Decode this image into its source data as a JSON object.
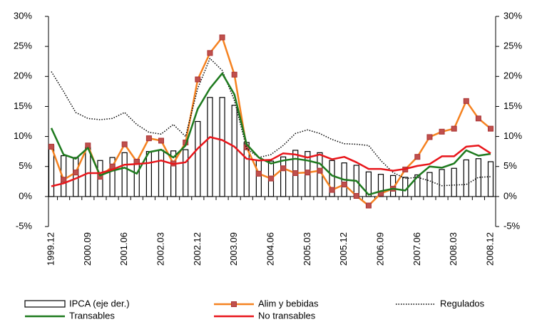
{
  "chart_data": {
    "type": "bar-line",
    "categories": [
      "1999.12",
      null,
      null,
      "2000.09",
      null,
      null,
      "2001.06",
      null,
      null,
      "2002.03",
      null,
      null,
      "2002.12",
      null,
      null,
      "2003.09",
      null,
      null,
      "2004.06",
      null,
      null,
      "2005.03",
      null,
      null,
      "2005.12",
      null,
      null,
      "2006.09",
      null,
      null,
      "2007.06",
      null,
      null,
      "2008.03",
      null,
      null,
      "2008.12"
    ],
    "series": [
      {
        "name": "IPCA (eje der.)",
        "type": "bar",
        "axis": "y2",
        "color": "#000000",
        "values": [
          8.5,
          6.8,
          6.5,
          8.2,
          6.0,
          6.5,
          7.3,
          6.2,
          7.5,
          7.7,
          7.6,
          7.8,
          12.5,
          16.5,
          16.5,
          15.2,
          9.0,
          6.0,
          5.9,
          6.6,
          7.7,
          7.5,
          7.3,
          6.0,
          5.6,
          5.2,
          4.1,
          3.7,
          3.5,
          3.2,
          3.6,
          4.0,
          4.5,
          4.7,
          6.1,
          6.3,
          5.8
        ]
      },
      {
        "name": "Alim y bebidas",
        "type": "line",
        "marker": true,
        "color": "#f58220",
        "values": [
          8.3,
          2.8,
          4.0,
          8.5,
          3.3,
          5.0,
          8.7,
          5.8,
          9.7,
          9.3,
          5.5,
          9.0,
          19.5,
          23.9,
          26.5,
          20.3,
          8.2,
          3.8,
          3.0,
          4.7,
          3.9,
          4.0,
          4.3,
          1.1,
          2.0,
          0.1,
          -1.5,
          0.5,
          1.3,
          4.5,
          6.6,
          9.9,
          10.8,
          11.3,
          15.9,
          13.0,
          11.3
        ]
      },
      {
        "name": "Regulados",
        "type": "line",
        "dashed": true,
        "color": "#000000",
        "values": [
          20.8,
          17.5,
          14.0,
          13.0,
          12.8,
          13.0,
          14.0,
          12.0,
          10.7,
          10.4,
          12.0,
          10.0,
          18.0,
          23.0,
          21.0,
          16.0,
          8.0,
          6.5,
          7.0,
          8.5,
          10.5,
          11.1,
          10.5,
          9.5,
          8.8,
          8.7,
          8.5,
          6.0,
          4.0,
          3.0,
          3.2,
          2.6,
          1.8,
          1.9,
          2.0,
          3.2,
          3.3
        ]
      },
      {
        "name": "Transables",
        "type": "line",
        "color": "#1e7a1e",
        "values": [
          11.4,
          7.0,
          6.3,
          8.1,
          3.5,
          4.3,
          4.8,
          3.8,
          7.4,
          7.8,
          6.5,
          8.5,
          14.6,
          18.0,
          20.5,
          17.0,
          8.7,
          6.5,
          5.5,
          6.0,
          6.3,
          6.0,
          5.5,
          3.5,
          2.8,
          2.6,
          0.3,
          0.9,
          1.3,
          1.0,
          3.3,
          5.0,
          4.8,
          5.5,
          7.7,
          6.8,
          7.1
        ]
      },
      {
        "name": "No transables",
        "type": "line",
        "color": "#e8161b",
        "values": [
          1.7,
          2.2,
          3.0,
          3.9,
          3.9,
          4.5,
          5.3,
          5.4,
          5.6,
          6.0,
          5.4,
          5.7,
          8.0,
          9.9,
          9.4,
          8.3,
          6.3,
          6.0,
          6.1,
          7.2,
          7.0,
          6.5,
          7.0,
          6.2,
          6.6,
          5.7,
          4.6,
          4.6,
          4.3,
          4.6,
          5.1,
          5.4,
          6.7,
          6.7,
          8.3,
          8.5,
          7.2
        ]
      }
    ],
    "ylim": [
      -5,
      30
    ],
    "yticks": [
      {
        "value": -5,
        "label": "-5%"
      },
      {
        "value": 0,
        "label": "0%"
      },
      {
        "value": 5,
        "label": "5%"
      },
      {
        "value": 10,
        "label": "10%"
      },
      {
        "value": 15,
        "label": "15%"
      },
      {
        "value": 20,
        "label": "20%"
      },
      {
        "value": 25,
        "label": "25%"
      },
      {
        "value": 30,
        "label": "30%"
      }
    ],
    "y2lim": [
      -5,
      30
    ],
    "y2ticks": [
      {
        "value": -5,
        "label": "-5%"
      },
      {
        "value": 0,
        "label": "0%"
      },
      {
        "value": 5,
        "label": "5%"
      },
      {
        "value": 10,
        "label": "10%"
      },
      {
        "value": 15,
        "label": "15%"
      },
      {
        "value": 20,
        "label": "20%"
      },
      {
        "value": 25,
        "label": "25%"
      },
      {
        "value": 30,
        "label": "30%"
      }
    ],
    "legend": "bottom"
  }
}
